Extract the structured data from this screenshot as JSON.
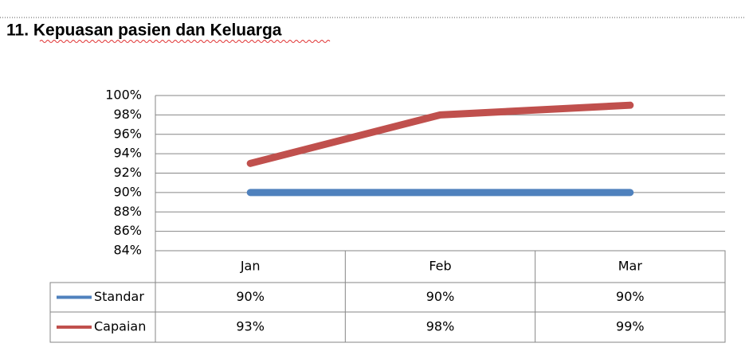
{
  "heading": "11. Kepuasan pasien dan Keluarga",
  "chart_data": {
    "type": "line",
    "categories": [
      "Jan",
      "Feb",
      "Mar"
    ],
    "series": [
      {
        "name": "Standar",
        "color": "#4f81bd",
        "values": [
          90,
          90,
          90
        ],
        "value_labels": [
          "90%",
          "90%",
          "90%"
        ]
      },
      {
        "name": "Capaian",
        "color": "#c0504d",
        "values": [
          93,
          98,
          99
        ],
        "value_labels": [
          "93%",
          "98%",
          "99%"
        ]
      }
    ],
    "ylim": [
      84,
      100
    ],
    "yticks": [
      {
        "value": 84,
        "label": "84%"
      },
      {
        "value": 86,
        "label": "86%"
      },
      {
        "value": 88,
        "label": "88%"
      },
      {
        "value": 90,
        "label": "90%"
      },
      {
        "value": 92,
        "label": "92%"
      },
      {
        "value": 94,
        "label": "94%"
      },
      {
        "value": 96,
        "label": "96%"
      },
      {
        "value": 98,
        "label": "98%"
      },
      {
        "value": 100,
        "label": "100%"
      }
    ],
    "grid": true,
    "data_table": true
  }
}
